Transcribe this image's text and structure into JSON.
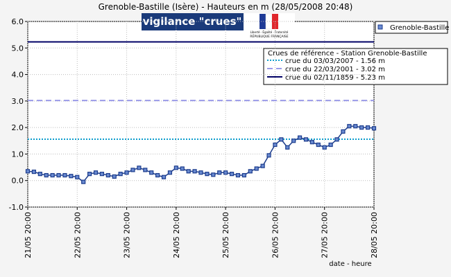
{
  "chart_data": {
    "type": "line",
    "title": "Grenoble-Bastille (Isère) - Hauteurs en m (28/05/2008 20:48)",
    "banner": {
      "text": "vigilance \"crues\"",
      "motto": "Liberté · Égalité · Fraternité",
      "republic": "RÉPUBLIQUE FRANÇAISE"
    },
    "x_label": "date - heure",
    "xlim": [
      0,
      168
    ],
    "xticks": [
      {
        "value": 0,
        "label": "21/05 20:00"
      },
      {
        "value": 24,
        "label": "22/05 20:00"
      },
      {
        "value": 48,
        "label": "23/05 20:00"
      },
      {
        "value": 72,
        "label": "24/05 20:00"
      },
      {
        "value": 96,
        "label": "25/05 20:00"
      },
      {
        "value": 120,
        "label": "26/05 20:00"
      },
      {
        "value": 144,
        "label": "27/05 20:00"
      },
      {
        "value": 168,
        "label": "28/05 20:00"
      }
    ],
    "ylim": [
      -1,
      6
    ],
    "yticks": [
      {
        "value": -1,
        "label": "-1.0"
      },
      {
        "value": 0,
        "label": "0.0"
      },
      {
        "value": 1,
        "label": "1.0"
      },
      {
        "value": 2,
        "label": "2.0"
      },
      {
        "value": 3,
        "label": "3.0"
      },
      {
        "value": 4,
        "label": "4.0"
      },
      {
        "value": 5,
        "label": "5.0"
      },
      {
        "value": 6,
        "label": "6.0"
      }
    ],
    "grid": true,
    "x": [
      0,
      3,
      6,
      9,
      12,
      15,
      18,
      21,
      24,
      27,
      30,
      33,
      36,
      39,
      42,
      45,
      48,
      51,
      54,
      57,
      60,
      63,
      66,
      69,
      72,
      75,
      78,
      81,
      84,
      87,
      90,
      93,
      96,
      99,
      102,
      105,
      108,
      111,
      114,
      117,
      120,
      123,
      126,
      129,
      132,
      135,
      138,
      141,
      144,
      147,
      150,
      153,
      156,
      159,
      162,
      165,
      168
    ],
    "series": [
      {
        "name": "Grenoble-Bastille",
        "color": "#1c3c8c",
        "values": [
          0.35,
          0.33,
          0.25,
          0.2,
          0.2,
          0.2,
          0.2,
          0.17,
          0.13,
          -0.05,
          0.25,
          0.3,
          0.25,
          0.2,
          0.15,
          0.25,
          0.3,
          0.4,
          0.48,
          0.4,
          0.3,
          0.2,
          0.13,
          0.3,
          0.48,
          0.45,
          0.35,
          0.35,
          0.3,
          0.25,
          0.22,
          0.3,
          0.3,
          0.25,
          0.2,
          0.2,
          0.35,
          0.45,
          0.55,
          0.95,
          1.35,
          1.55,
          1.25,
          1.5,
          1.62,
          1.55,
          1.45,
          1.35,
          1.25,
          1.35,
          1.55,
          1.85,
          2.05,
          2.05,
          2.0,
          2.0,
          1.97
        ]
      }
    ],
    "reference_title": "Crues de référence - Station Grenoble-Bastille",
    "reference_lines": [
      {
        "label": "crue du 03/03/2007 - 1.56 m",
        "value": 1.56,
        "color": "#0a9ccc",
        "style": "dotted"
      },
      {
        "label": "crue du 22/03/2001 - 3.02 m",
        "value": 3.02,
        "color": "#9a9ae8",
        "style": "dashed"
      },
      {
        "label": "crue du 02/11/1859 - 5.23 m",
        "value": 5.23,
        "color": "#000066",
        "style": "solid"
      }
    ]
  }
}
